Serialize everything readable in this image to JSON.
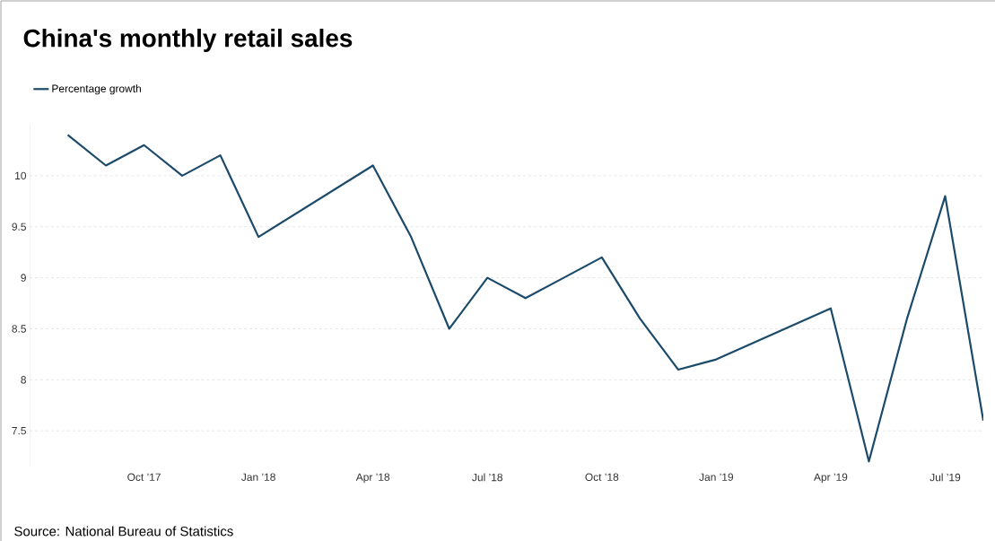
{
  "chart_data": {
    "type": "line",
    "title": "China's monthly retail sales",
    "x": [
      "2017-08",
      "2017-09",
      "2017-10",
      "2017-11",
      "2017-12",
      "2018-01",
      "2018-04",
      "2018-05",
      "2018-06",
      "2018-07",
      "2018-08",
      "2018-09",
      "2018-10",
      "2018-11",
      "2018-12",
      "2019-01",
      "2019-04",
      "2019-05",
      "2019-06",
      "2019-07",
      "2019-08"
    ],
    "series": [
      {
        "name": "Percentage growth",
        "color": "#1b4a6b",
        "values": [
          10.4,
          10.1,
          10.3,
          10.0,
          10.2,
          9.4,
          10.1,
          9.4,
          8.5,
          9.0,
          8.8,
          9.0,
          9.2,
          8.6,
          8.1,
          8.2,
          8.7,
          7.2,
          8.6,
          9.8,
          7.6
        ]
      }
    ],
    "xlim": [
      "2017-07",
      "2019-08"
    ],
    "xticks": [
      {
        "value": "2017-10",
        "label": "Oct ’17"
      },
      {
        "value": "2018-01",
        "label": "Jan ’18"
      },
      {
        "value": "2018-04",
        "label": "Apr ’18"
      },
      {
        "value": "2018-07",
        "label": "Jul ’18"
      },
      {
        "value": "2018-10",
        "label": "Oct ’18"
      },
      {
        "value": "2019-01",
        "label": "Jan ’19"
      },
      {
        "value": "2019-04",
        "label": "Apr ’19"
      },
      {
        "value": "2019-07",
        "label": "Jul ’19"
      }
    ],
    "ylim": [
      7.15,
      10.5
    ],
    "yticks": [
      7.5,
      8,
      8.5,
      9,
      9.5,
      10
    ],
    "grid": "y",
    "legend": "top left",
    "line_style": "solid",
    "marker": "none",
    "annotations": [
      "Source: National Bureau of Statistics"
    ]
  }
}
